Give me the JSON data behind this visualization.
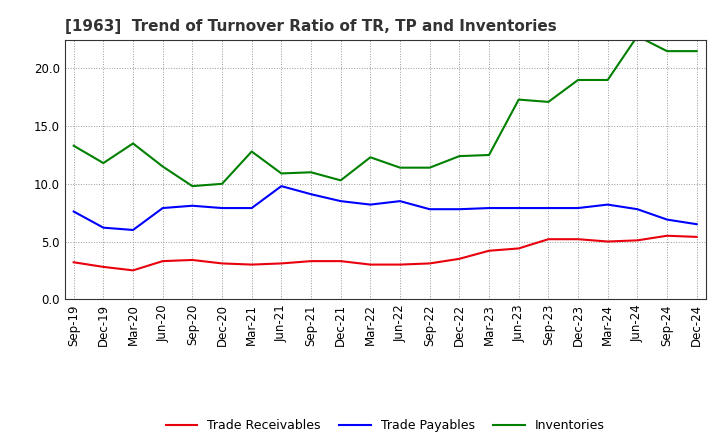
{
  "title": "[1963]  Trend of Turnover Ratio of TR, TP and Inventories",
  "x_labels": [
    "Sep-19",
    "Dec-19",
    "Mar-20",
    "Jun-20",
    "Sep-20",
    "Dec-20",
    "Mar-21",
    "Jun-21",
    "Sep-21",
    "Dec-21",
    "Mar-22",
    "Jun-22",
    "Sep-22",
    "Dec-22",
    "Mar-23",
    "Jun-23",
    "Sep-23",
    "Dec-23",
    "Mar-24",
    "Jun-24",
    "Sep-24",
    "Dec-24"
  ],
  "trade_receivables": [
    3.2,
    2.8,
    2.5,
    3.3,
    3.4,
    3.1,
    3.0,
    3.1,
    3.3,
    3.3,
    3.0,
    3.0,
    3.1,
    3.5,
    4.2,
    4.4,
    5.2,
    5.2,
    5.0,
    5.1,
    5.5,
    5.4
  ],
  "trade_payables": [
    7.6,
    6.2,
    6.0,
    7.9,
    8.1,
    7.9,
    7.9,
    9.8,
    9.1,
    8.5,
    8.2,
    8.5,
    7.8,
    7.8,
    7.9,
    7.9,
    7.9,
    7.9,
    8.2,
    7.8,
    6.9,
    6.5
  ],
  "inventories": [
    13.3,
    11.8,
    13.5,
    11.5,
    9.8,
    10.0,
    12.8,
    10.9,
    11.0,
    10.3,
    12.3,
    11.4,
    11.4,
    12.4,
    12.5,
    17.3,
    17.1,
    19.0,
    19.0,
    22.8,
    21.5,
    21.5
  ],
  "tr_color": "#e8000d",
  "tp_color": "#0000ff",
  "inv_color": "#008000",
  "ylim": [
    0.0,
    22.5
  ],
  "yticks": [
    0.0,
    5.0,
    10.0,
    15.0,
    20.0
  ],
  "legend_labels": [
    "Trade Receivables",
    "Trade Payables",
    "Inventories"
  ],
  "bg_color": "#ffffff",
  "grid_color": "#999999",
  "title_fontsize": 11,
  "tick_fontsize": 8.5
}
